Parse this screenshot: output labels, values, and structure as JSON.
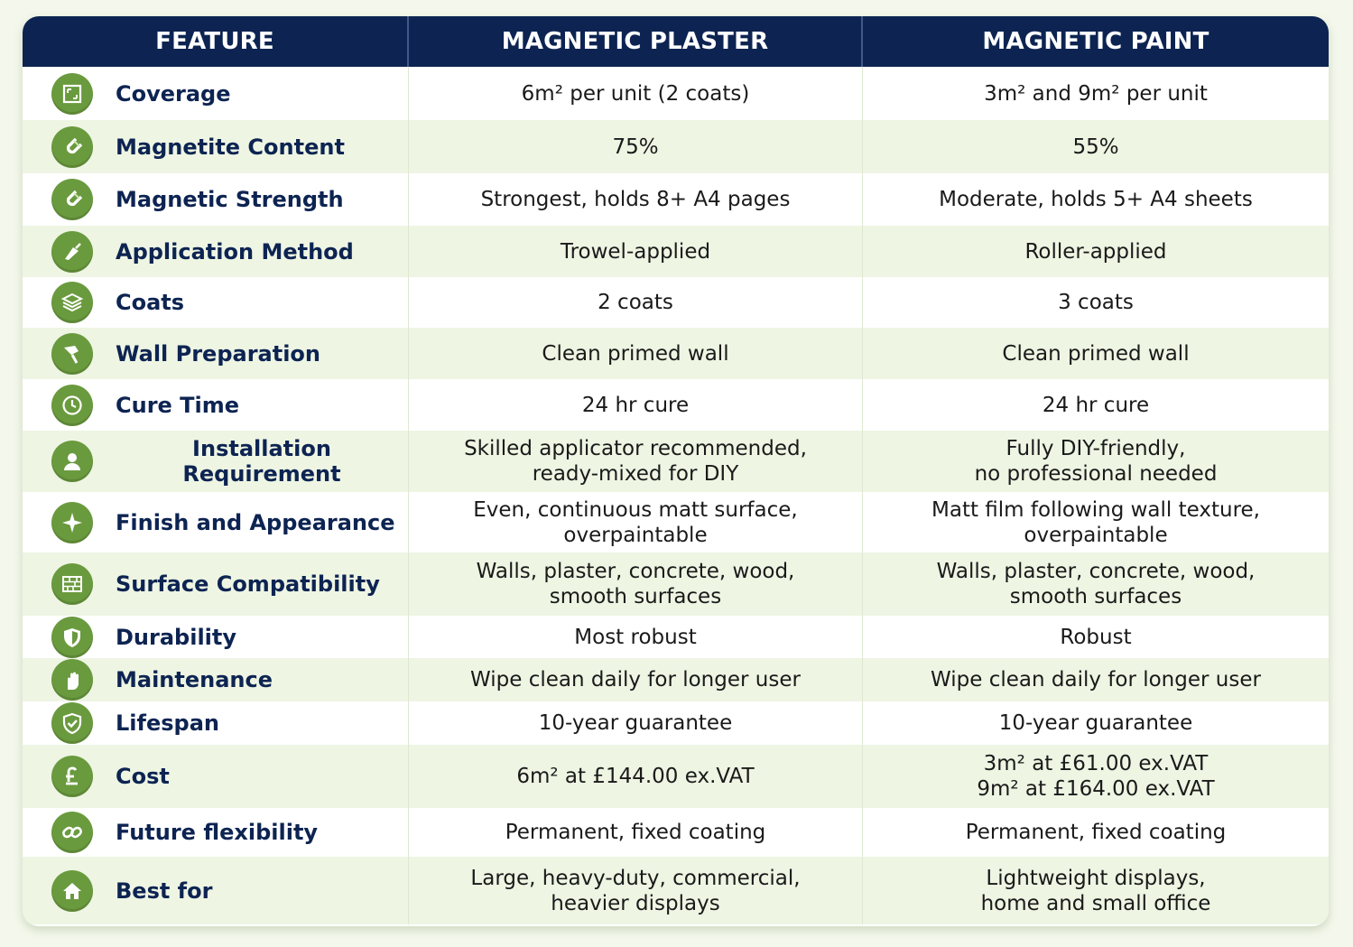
{
  "header": {
    "feature": "FEATURE",
    "plaster": "MAGNETIC PLASTER",
    "paint": "MAGNETIC PAINT"
  },
  "rows": [
    {
      "feature": "Coverage",
      "icon": "area-frame-icon",
      "plaster": "6m² per unit (2 coats)",
      "paint": "3m² and 9m² per unit"
    },
    {
      "feature": "Magnetite Content",
      "icon": "magnet-icon",
      "plaster": "75%",
      "paint": "55%"
    },
    {
      "feature": "Magnetic Strength",
      "icon": "magnet-icon",
      "plaster": "Strongest, holds 8+ A4 pages",
      "paint": "Moderate, holds 5+ A4 sheets"
    },
    {
      "feature": "Application Method",
      "icon": "trowel-icon",
      "plaster": "Trowel-applied",
      "paint": "Roller-applied"
    },
    {
      "feature": "Coats",
      "icon": "layers-icon",
      "plaster": "2 coats",
      "paint": "3 coats"
    },
    {
      "feature": "Wall Preparation",
      "icon": "brush-icon",
      "plaster": "Clean primed wall",
      "paint": "Clean primed wall"
    },
    {
      "feature": "Cure Time",
      "icon": "clock-icon",
      "plaster": "24 hr cure",
      "paint": "24 hr cure"
    },
    {
      "feature": "Installation Requirement",
      "icon": "user-icon",
      "plaster": "Skilled applicator recommended,\nready-mixed for DIY",
      "paint": "Fully DIY-friendly,\nno professional needed"
    },
    {
      "feature": "Finish and Appearance",
      "icon": "sparkle-icon",
      "plaster": "Even, continuous matt surface,\noverpaintable",
      "paint": "Matt film following wall texture,\noverpaintable"
    },
    {
      "feature": "Surface Compatibility",
      "icon": "brick-wall-icon",
      "plaster": "Walls, plaster, concrete, wood,\nsmooth surfaces",
      "paint": "Walls, plaster, concrete, wood,\nsmooth surfaces"
    },
    {
      "feature": "Durability",
      "icon": "shield-icon",
      "plaster": "Most robust",
      "paint": "Robust"
    },
    {
      "feature": "Maintenance",
      "icon": "hand-wipe-icon",
      "plaster": "Wipe clean daily for longer user",
      "paint": "Wipe clean daily for longer user"
    },
    {
      "feature": "Lifespan",
      "icon": "shield-check-icon",
      "plaster": "10-year guarantee",
      "paint": "10-year guarantee"
    },
    {
      "feature": "Cost",
      "icon": "pound-icon",
      "plaster": "6m² at £144.00 ex.VAT",
      "paint": "3m² at £61.00 ex.VAT\n9m² at £164.00 ex.VAT"
    },
    {
      "feature": "Future flexibility",
      "icon": "chain-link-icon",
      "plaster": "Permanent, fixed coating",
      "paint": "Permanent, fixed coating"
    },
    {
      "feature": "Best for",
      "icon": "home-icon",
      "plaster": "Large, heavy-duty, commercial,\nheavier displays",
      "paint": "Lightweight displays,\nhome and small office"
    }
  ]
}
